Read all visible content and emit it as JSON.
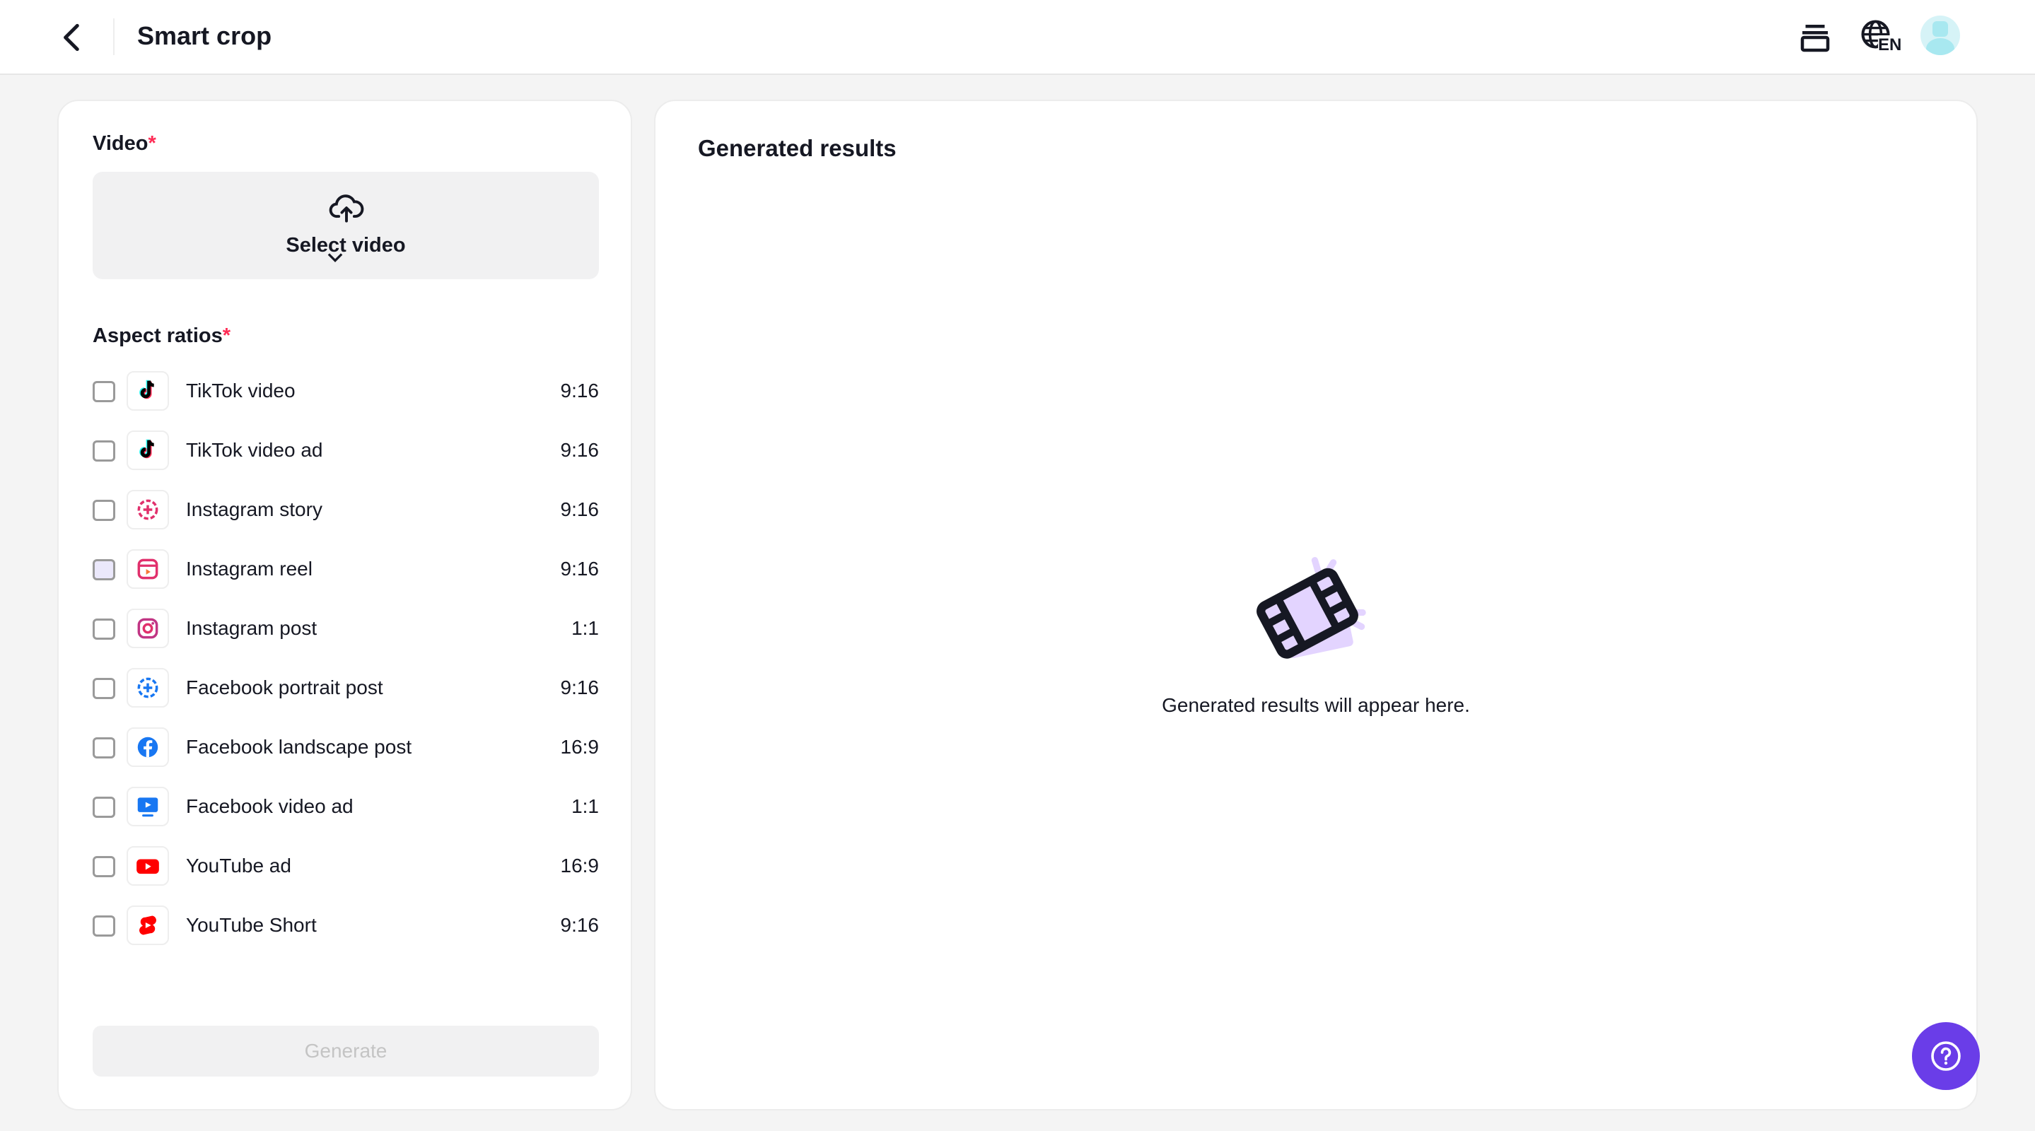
{
  "header": {
    "title": "Smart crop",
    "language": "EN"
  },
  "left": {
    "video_label": "Video",
    "required_mark": "*",
    "select_video": "Select video",
    "aspect_label": "Aspect ratios",
    "items": [
      {
        "label": "TikTok video",
        "ratio": "9:16",
        "icon": "tiktok-icon"
      },
      {
        "label": "TikTok video ad",
        "ratio": "9:16",
        "icon": "tiktok-icon"
      },
      {
        "label": "Instagram story",
        "ratio": "9:16",
        "icon": "instagram-story-icon"
      },
      {
        "label": "Instagram reel",
        "ratio": "9:16",
        "icon": "instagram-reel-icon"
      },
      {
        "label": "Instagram post",
        "ratio": "1:1",
        "icon": "instagram-icon"
      },
      {
        "label": "Facebook portrait post",
        "ratio": "9:16",
        "icon": "facebook-story-icon"
      },
      {
        "label": "Facebook landscape post",
        "ratio": "16:9",
        "icon": "facebook-icon"
      },
      {
        "label": "Facebook video ad",
        "ratio": "1:1",
        "icon": "facebook-video-icon"
      },
      {
        "label": "YouTube ad",
        "ratio": "16:9",
        "icon": "youtube-icon"
      },
      {
        "label": "YouTube Short",
        "ratio": "9:16",
        "icon": "youtube-shorts-icon"
      }
    ],
    "generate": "Generate"
  },
  "right": {
    "title": "Generated results",
    "empty_message": "Generated results will appear here."
  },
  "colors": {
    "accent": "#6a3de8",
    "required": "#fe2c55",
    "illustration": "#e3d4ff"
  }
}
